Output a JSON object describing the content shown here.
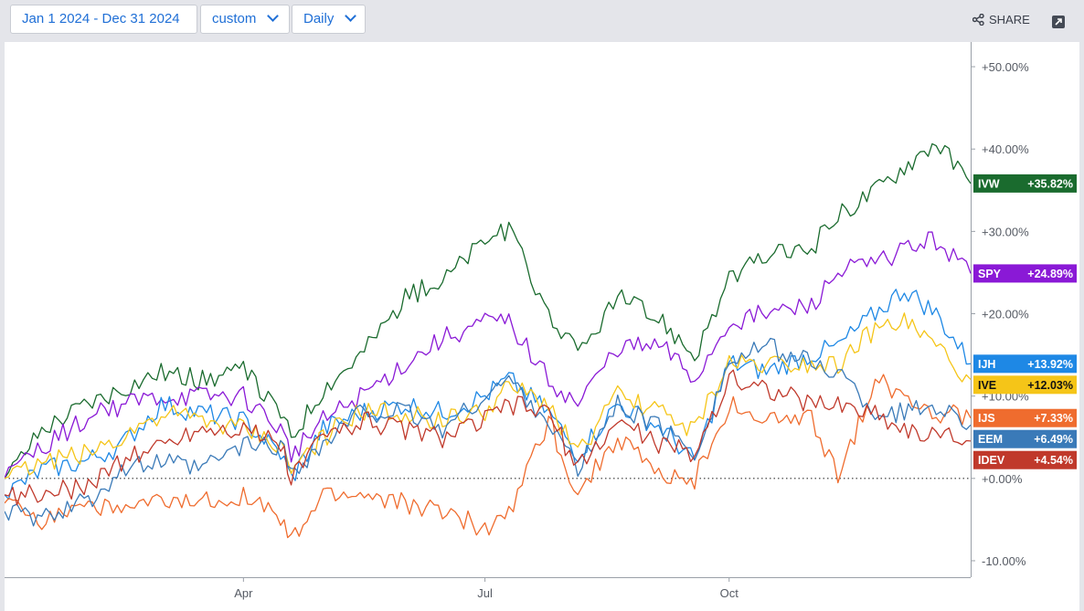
{
  "toolbar": {
    "date_range": "Jan 1 2024 - Dec 31 2024",
    "range_type": "custom",
    "interval": "Daily",
    "share_label": "SHARE"
  },
  "colors": {
    "IVW": "#1a6b2e",
    "SPY": "#8a19d6",
    "IJH": "#1e88e5",
    "IVE": "#f5c518",
    "IJS": "#ef6c2e",
    "EEM": "#3a7ab8",
    "IDEV": "#c0392b"
  },
  "chart_data": {
    "type": "line",
    "x": [
      "2024-01-02",
      "2024-01-16",
      "2024-02-01",
      "2024-02-15",
      "2024-03-01",
      "2024-03-15",
      "2024-04-01",
      "2024-04-15",
      "2024-04-19",
      "2024-05-01",
      "2024-05-15",
      "2024-06-01",
      "2024-06-15",
      "2024-07-01",
      "2024-07-10",
      "2024-07-25",
      "2024-08-05",
      "2024-08-20",
      "2024-09-06",
      "2024-09-18",
      "2024-10-01",
      "2024-10-15",
      "2024-11-01",
      "2024-11-11",
      "2024-11-25",
      "2024-12-06",
      "2024-12-18",
      "2024-12-31"
    ],
    "ylim": [
      -12,
      53
    ],
    "yticks": [
      "-10.00%",
      "+0.00%",
      "+10.00%",
      "+20.00%",
      "+30.00%",
      "+40.00%",
      "+50.00%"
    ],
    "yticks_values": [
      -10,
      0,
      10,
      20,
      30,
      40,
      50
    ],
    "xticks": [
      "Apr",
      "Jul",
      "Oct"
    ],
    "xticks_dates": [
      "2024-04-01",
      "2024-07-01",
      "2024-10-01"
    ],
    "zero_line": true,
    "series": [
      {
        "name": "IVW",
        "label": "+35.82%",
        "last": 35.82,
        "values": [
          0,
          6,
          9,
          11,
          13,
          12,
          13,
          8,
          5,
          11,
          15,
          22,
          24,
          29,
          30,
          20,
          15,
          22,
          19,
          15,
          24,
          27,
          28,
          32,
          35,
          38,
          41,
          35.82
        ]
      },
      {
        "name": "SPY",
        "label": "+24.89%",
        "last": 24.89,
        "values": [
          0,
          4,
          7,
          9,
          10,
          10,
          10,
          6,
          3,
          7,
          10,
          14,
          17,
          19,
          19,
          12,
          9,
          16,
          16,
          12,
          19,
          20,
          21,
          25,
          26,
          28,
          29,
          24.89
        ]
      },
      {
        "name": "IJH",
        "label": "+13.92%",
        "last": 13.92,
        "values": [
          -2,
          1,
          2,
          4,
          9,
          8,
          7,
          3,
          0,
          6,
          8,
          9,
          8,
          10,
          12,
          8,
          3,
          9,
          6,
          2,
          14,
          13,
          15,
          16,
          20,
          23,
          20,
          13.92
        ]
      },
      {
        "name": "IVE",
        "label": "+12.03%",
        "last": 12.03,
        "values": [
          0,
          2,
          3,
          5,
          8,
          7,
          6,
          4,
          1,
          5,
          8,
          8,
          7,
          8,
          11,
          9,
          3,
          10,
          8,
          6,
          14,
          14,
          14,
          14,
          18,
          19,
          16,
          12.03
        ]
      },
      {
        "name": "IJS",
        "label": "+7.33%",
        "last": 7.33,
        "values": [
          -3,
          -5,
          -3,
          -4,
          -3,
          -3,
          -2,
          -5,
          -8,
          -2,
          -2,
          -3,
          -4,
          -6,
          -4,
          7,
          -2,
          5,
          0,
          0,
          9,
          7,
          7,
          0,
          12,
          10,
          8,
          7.33
        ]
      },
      {
        "name": "EEM",
        "label": "+6.49%",
        "last": 6.49,
        "values": [
          -4,
          -5,
          -3,
          1,
          2,
          1,
          4,
          4,
          1,
          4,
          8,
          8,
          6,
          10,
          12,
          7,
          1,
          9,
          6,
          3,
          14,
          16,
          14,
          13,
          8,
          8,
          9,
          6.49
        ]
      },
      {
        "name": "IDEV",
        "label": "+4.54%",
        "last": 4.54,
        "values": [
          -2,
          -2,
          -1,
          2,
          4,
          6,
          6,
          4,
          0,
          5,
          7,
          6,
          5,
          7,
          9,
          8,
          1,
          7,
          4,
          3,
          12,
          11,
          9,
          9,
          8,
          6,
          5,
          4.54
        ]
      }
    ]
  }
}
